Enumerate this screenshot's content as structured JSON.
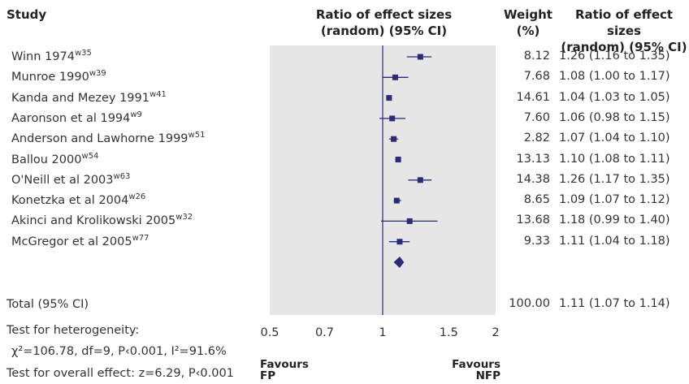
{
  "headers": {
    "study": "Study",
    "plot_title_line1": "Ratio of effect sizes",
    "plot_title_line2": "(random) (95% CI)",
    "weight_line1": "Weight",
    "weight_line2": "(%)",
    "ratio_line1": "Ratio of effect sizes",
    "ratio_line2": "(random) (95% CI)"
  },
  "studies": [
    {
      "name": "Winn 1974",
      "ref": "w35",
      "weight": "8.12",
      "ci_text": "1.26 (1.16 to 1.35)"
    },
    {
      "name": "Munroe 1990",
      "ref": "w39",
      "weight": "7.68",
      "ci_text": "1.08 (1.00 to 1.17)"
    },
    {
      "name": "Kanda and Mezey 1991",
      "ref": "w41",
      "weight": "14.61",
      "ci_text": "1.04 (1.03 to 1.05)"
    },
    {
      "name": "Aaronson et al 1994",
      "ref": "w9",
      "weight": "7.60",
      "ci_text": "1.06 (0.98 to 1.15)"
    },
    {
      "name": "Anderson and Lawhorne 1999",
      "ref": "w51",
      "weight": "2.82",
      "ci_text": "1.07 (1.04 to 1.10)"
    },
    {
      "name": "Ballou 2000",
      "ref": "w54",
      "weight": "13.13",
      "ci_text": "1.10 (1.08 to 1.11)"
    },
    {
      "name": "O'Neill et al 2003",
      "ref": "w63",
      "weight": "14.38",
      "ci_text": "1.26 (1.17 to 1.35)"
    },
    {
      "name": "Konetzka et al 2004",
      "ref": "w26",
      "weight": "8.65",
      "ci_text": "1.09 (1.07 to 1.12)"
    },
    {
      "name": "Akinci and Krolikowski 2005",
      "ref": "w32",
      "weight": "13.68",
      "ci_text": "1.18 (0.99 to 1.40)"
    },
    {
      "name": "McGregor et al 2005",
      "ref": "w77",
      "weight": "9.33",
      "ci_text": "1.11 (1.04 to 1.18)"
    }
  ],
  "total": {
    "label": "Total (95% CI)",
    "weight": "100.00",
    "ci_text": "1.11 (1.07 to 1.14)"
  },
  "footer": {
    "heterogeneity_label": "Test for heterogeneity:",
    "heterogeneity_stats": "χ²=106.78, df=9, P‹0.001, I²=91.6%",
    "overall_effect": "Test for overall effect: z=6.29, P‹0.001"
  },
  "favours": {
    "left_line1": "Favours",
    "left_line2": "FP",
    "right_line1": "Favours",
    "right_line2": "NFP"
  },
  "colors": {
    "panel_bg": "#e6e6e6",
    "marker": "#2b2b7a",
    "ref_line": "#2b2b7a",
    "text": "#333333"
  },
  "chart_data": {
    "type": "forest",
    "scale": "log",
    "xlim": [
      0.5,
      2
    ],
    "ticks": [
      0.5,
      0.7,
      1,
      1.5,
      2
    ],
    "tick_labels": [
      "0.5",
      "0.7",
      "1",
      "1.5",
      "2"
    ],
    "reference_line": 1,
    "points": [
      {
        "study": "Winn 1974",
        "estimate": 1.26,
        "lower": 1.16,
        "upper": 1.35,
        "weight": 8.12
      },
      {
        "study": "Munroe 1990",
        "estimate": 1.08,
        "lower": 1.0,
        "upper": 1.17,
        "weight": 7.68
      },
      {
        "study": "Kanda and Mezey 1991",
        "estimate": 1.04,
        "lower": 1.03,
        "upper": 1.05,
        "weight": 14.61
      },
      {
        "study": "Aaronson et al 1994",
        "estimate": 1.06,
        "lower": 0.98,
        "upper": 1.15,
        "weight": 7.6
      },
      {
        "study": "Anderson and Lawhorne 1999",
        "estimate": 1.07,
        "lower": 1.04,
        "upper": 1.1,
        "weight": 2.82
      },
      {
        "study": "Ballou 2000",
        "estimate": 1.1,
        "lower": 1.08,
        "upper": 1.11,
        "weight": 13.13
      },
      {
        "study": "O'Neill et al 2003",
        "estimate": 1.26,
        "lower": 1.17,
        "upper": 1.35,
        "weight": 14.38
      },
      {
        "study": "Konetzka et al 2004",
        "estimate": 1.09,
        "lower": 1.07,
        "upper": 1.12,
        "weight": 8.65
      },
      {
        "study": "Akinci and Krolikowski 2005",
        "estimate": 1.18,
        "lower": 0.99,
        "upper": 1.4,
        "weight": 13.68
      },
      {
        "study": "McGregor et al 2005",
        "estimate": 1.11,
        "lower": 1.04,
        "upper": 1.18,
        "weight": 9.33
      }
    ],
    "pooled": {
      "estimate": 1.11,
      "lower": 1.07,
      "upper": 1.14,
      "weight": 100.0
    }
  }
}
